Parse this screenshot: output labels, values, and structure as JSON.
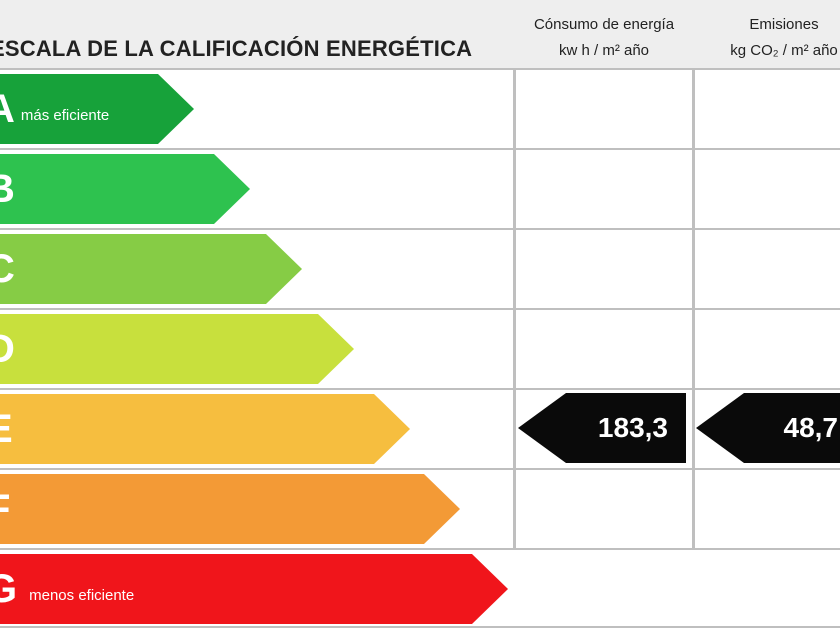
{
  "header": {
    "title": "ESCALA DE LA CALIFICACIÓN ENERGÉTICA",
    "energy_col": {
      "line1": "Cónsumo de energía",
      "line2": "kw h / m² año"
    },
    "co2_col": {
      "line1": "Emisiones",
      "line2": "kg CO₂ / m² año"
    }
  },
  "ratings": [
    {
      "letter": "A",
      "sublabel": "más eficiente",
      "color": "#17a23a"
    },
    {
      "letter": "B",
      "sublabel": "",
      "color": "#2ec24f"
    },
    {
      "letter": "C",
      "sublabel": "",
      "color": "#86cc45"
    },
    {
      "letter": "D",
      "sublabel": "",
      "color": "#c8e03d"
    },
    {
      "letter": "E",
      "sublabel": "",
      "color": "#f6be3f"
    },
    {
      "letter": "F",
      "sublabel": "",
      "color": "#f39a36"
    },
    {
      "letter": "G",
      "sublabel": "menos eficiente",
      "color": "#f0151b"
    }
  ],
  "current": {
    "rating": "E",
    "energy_value": "183,3",
    "co2_value": "48,7"
  }
}
